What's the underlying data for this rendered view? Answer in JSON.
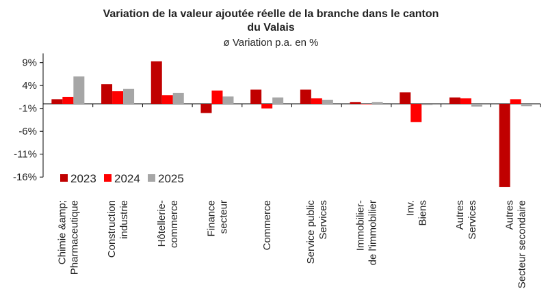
{
  "chart_data": {
    "type": "bar",
    "title_line1": "Variation de la valeur ajoutée réelle de la branche dans le canton",
    "title_line2": "du Valais",
    "subtitle": "ø Variation p.a. en %",
    "yticks": [
      "9%",
      "4%",
      "-1%",
      "-6%",
      "-11%",
      "-16%"
    ],
    "ylim": [
      -16,
      11
    ],
    "grid": false,
    "legend_position": "lower-left",
    "categories": [
      [
        "Chimie &amp;",
        "Pharmaceutique"
      ],
      [
        "Construction",
        "industrie"
      ],
      [
        "Hôtellerie-",
        "commerce"
      ],
      [
        "Finance",
        "secteur"
      ],
      [
        "Commerce"
      ],
      [
        "Service public",
        "Services"
      ],
      [
        "Immobilier-",
        "de l'immobilier"
      ],
      [
        "Inv.",
        "Biens"
      ],
      [
        "Autres",
        "Services"
      ],
      [
        "Autres",
        "Secteur secondaire"
      ]
    ],
    "series": [
      {
        "name": "2023",
        "color": "#c00000",
        "values": [
          1.0,
          4.3,
          9.3,
          -2.0,
          3.1,
          3.1,
          0.4,
          2.5,
          1.4,
          -18.2
        ]
      },
      {
        "name": "2024",
        "color": "#ff0000",
        "values": [
          1.5,
          2.8,
          1.9,
          2.9,
          -1.0,
          1.2,
          -0.1,
          -4.0,
          1.2,
          1.0
        ]
      },
      {
        "name": "2025",
        "color": "#a6a6a6",
        "values": [
          6.0,
          3.3,
          2.4,
          1.6,
          1.4,
          0.9,
          0.4,
          -0.3,
          -0.6,
          -0.5
        ]
      }
    ]
  }
}
